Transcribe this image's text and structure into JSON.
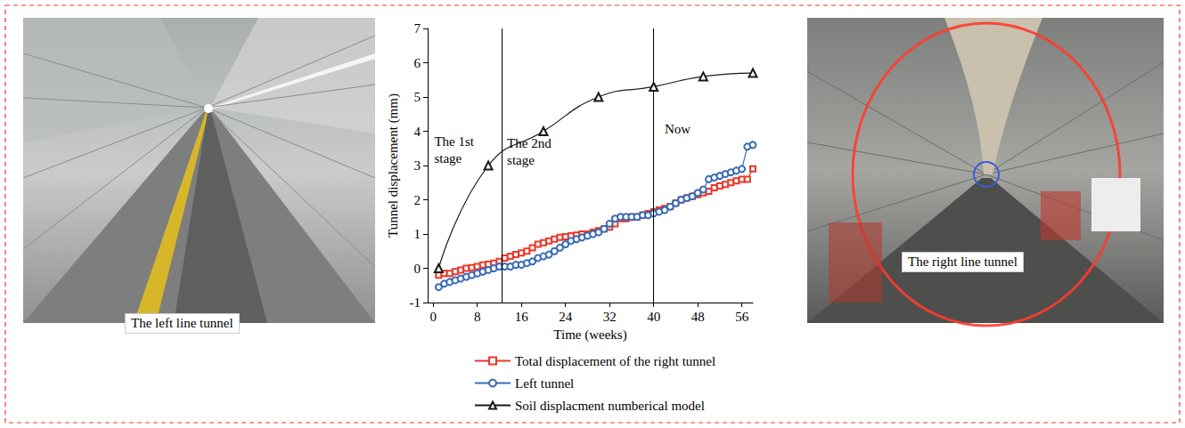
{
  "chart_data": {
    "type": "line",
    "x_label": "Time (weeks)",
    "y_label": "Tunnel displacement (mm)",
    "xlim": [
      -1,
      58
    ],
    "xticks": [
      0,
      8,
      16,
      24,
      32,
      40,
      48,
      56
    ],
    "ylim": [
      -1,
      7
    ],
    "yticks": [
      -1,
      0,
      1,
      2,
      3,
      4,
      5,
      6,
      7
    ],
    "grid": false,
    "legend": "bottom",
    "stage_boundaries": [
      12.5,
      40
    ],
    "annotations": [
      {
        "text": "The 1st stage",
        "x": 0.2,
        "y": 3.95
      },
      {
        "text": "The 2nd stage",
        "x": 13.4,
        "y": 3.9
      },
      {
        "text": "Now",
        "x": 42,
        "y": 4.3
      }
    ],
    "series": [
      {
        "name": "Total displacement of the right tunnel",
        "color": "#e8392c",
        "marker": "square",
        "x": [
          1,
          2,
          3,
          4,
          5,
          6,
          7,
          8,
          9,
          10,
          11,
          12,
          13,
          14,
          15,
          16,
          17,
          18,
          19,
          20,
          21,
          22,
          23,
          24,
          25,
          26,
          27,
          28,
          29,
          30,
          31,
          32,
          33,
          34,
          35,
          36,
          37,
          38,
          39,
          40,
          41,
          42,
          43,
          44,
          45,
          46,
          47,
          48,
          49,
          50,
          51,
          52,
          53,
          54,
          55,
          56,
          57,
          58
        ],
        "values": [
          -0.2,
          -0.15,
          -0.15,
          -0.1,
          -0.05,
          0,
          0.02,
          0.05,
          0.1,
          0.12,
          0.15,
          0.2,
          0.3,
          0.35,
          0.4,
          0.45,
          0.5,
          0.6,
          0.7,
          0.75,
          0.8,
          0.85,
          0.9,
          0.92,
          0.95,
          0.97,
          1.0,
          1.0,
          1.05,
          1.1,
          1.15,
          1.2,
          1.3,
          1.45,
          1.45,
          1.5,
          1.5,
          1.55,
          1.6,
          1.65,
          1.7,
          1.75,
          1.8,
          1.9,
          2.0,
          2.05,
          2.1,
          2.15,
          2.2,
          2.25,
          2.35,
          2.4,
          2.45,
          2.5,
          2.55,
          2.6,
          2.6,
          2.9
        ]
      },
      {
        "name": "Left tunnel",
        "color": "#3a6bb5",
        "marker": "circle",
        "x": [
          1,
          2,
          3,
          4,
          5,
          6,
          7,
          8,
          9,
          10,
          11,
          12,
          13,
          14,
          15,
          16,
          17,
          18,
          19,
          20,
          21,
          22,
          23,
          24,
          25,
          26,
          27,
          28,
          29,
          30,
          31,
          32,
          33,
          34,
          35,
          36,
          37,
          38,
          39,
          40,
          41,
          42,
          43,
          44,
          45,
          46,
          47,
          48,
          49,
          50,
          51,
          52,
          53,
          54,
          55,
          56,
          57,
          58
        ],
        "values": [
          -0.55,
          -0.45,
          -0.4,
          -0.35,
          -0.3,
          -0.25,
          -0.2,
          -0.15,
          -0.1,
          -0.05,
          0,
          0.05,
          0.05,
          0.05,
          0.1,
          0.1,
          0.15,
          0.2,
          0.3,
          0.35,
          0.4,
          0.5,
          0.6,
          0.7,
          0.8,
          0.85,
          0.9,
          0.95,
          1.0,
          1.05,
          1.15,
          1.3,
          1.45,
          1.5,
          1.5,
          1.5,
          1.5,
          1.55,
          1.55,
          1.6,
          1.65,
          1.7,
          1.8,
          1.9,
          2.0,
          2.05,
          2.1,
          2.2,
          2.3,
          2.6,
          2.65,
          2.7,
          2.75,
          2.8,
          2.85,
          2.9,
          3.55,
          3.6
        ]
      },
      {
        "name": "Soil displacment numberical model",
        "color": "#1a1a1a",
        "marker": "triangle",
        "x": [
          1,
          10,
          20,
          30,
          40,
          49,
          58
        ],
        "values": [
          0,
          3,
          4,
          5,
          5.3,
          5.6,
          5.7
        ]
      }
    ]
  },
  "panels": [
    {
      "label": "The left line tunnel"
    },
    {
      "label": "The right line tunnel"
    }
  ]
}
